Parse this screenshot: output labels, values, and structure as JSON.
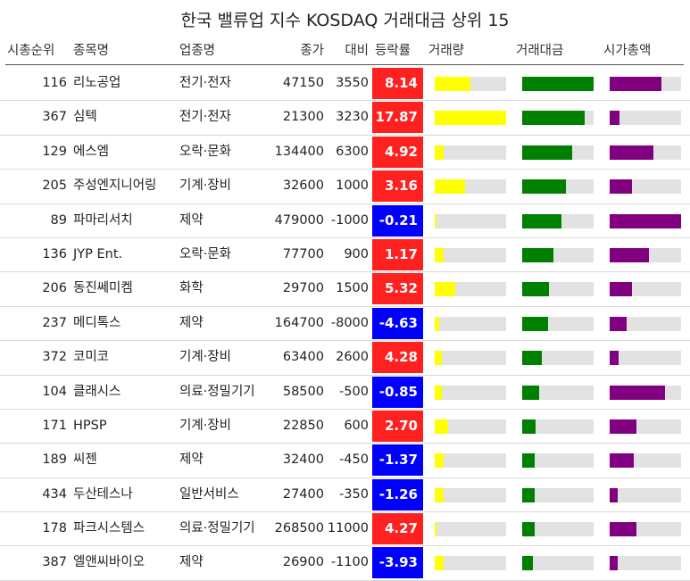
{
  "title": "한국 밸류업 지수 KOSDAQ 거래대금 상위 15",
  "headers": {
    "rank": "시총순위",
    "name": "종목명",
    "sector": "업종명",
    "price": "종가",
    "diff": "대비",
    "rate": "등락률",
    "volume": "거래량",
    "amount": "거래대금",
    "cap": "시가총액"
  },
  "colors": {
    "up": "#ff2020",
    "down": "#0000ff",
    "volume": "#ffff00",
    "amount": "#008000",
    "cap": "#800080",
    "track": "#e2e2e2"
  },
  "chart_data": {
    "type": "table",
    "columns": [
      "시총순위",
      "종목명",
      "업종명",
      "종가",
      "대비",
      "등락률",
      "거래량",
      "거래대금",
      "시가총액"
    ],
    "bar_columns_note_units": "fraction of column maximum",
    "rows": [
      {
        "rank": "116",
        "name": "리노공업",
        "sector": "전기·전자",
        "price": "47150",
        "diff": "3550",
        "rate": "8.14",
        "volume": 0.5,
        "amount": 1.0,
        "cap": 0.72
      },
      {
        "rank": "367",
        "name": "심텍",
        "sector": "전기·전자",
        "price": "21300",
        "diff": "3230",
        "rate": "17.87",
        "volume": 1.0,
        "amount": 0.88,
        "cap": 0.14
      },
      {
        "rank": "129",
        "name": "에스엠",
        "sector": "오락·문화",
        "price": "134400",
        "diff": "6300",
        "rate": "4.92",
        "volume": 0.12,
        "amount": 0.7,
        "cap": 0.61
      },
      {
        "rank": "205",
        "name": "주성엔지니어링",
        "sector": "기계·장비",
        "price": "32600",
        "diff": "1000",
        "rate": "3.16",
        "volume": 0.43,
        "amount": 0.61,
        "cap": 0.31
      },
      {
        "rank": "89",
        "name": "파마리서치",
        "sector": "제약",
        "price": "479000",
        "diff": "-1000",
        "rate": "-0.21",
        "volume": 0.03,
        "amount": 0.55,
        "cap": 1.0
      },
      {
        "rank": "136",
        "name": "JYP Ent.",
        "sector": "오락·문화",
        "price": "77700",
        "diff": "900",
        "rate": "1.17",
        "volume": 0.13,
        "amount": 0.44,
        "cap": 0.55
      },
      {
        "rank": "206",
        "name": "동진쎄미켐",
        "sector": "화학",
        "price": "29700",
        "diff": "1500",
        "rate": "5.32",
        "volume": 0.29,
        "amount": 0.37,
        "cap": 0.31
      },
      {
        "rank": "237",
        "name": "메디톡스",
        "sector": "제약",
        "price": "164700",
        "diff": "-8000",
        "rate": "-4.63",
        "volume": 0.06,
        "amount": 0.36,
        "cap": 0.24
      },
      {
        "rank": "372",
        "name": "코미코",
        "sector": "기계·장비",
        "price": "63400",
        "diff": "2600",
        "rate": "4.28",
        "volume": 0.1,
        "amount": 0.27,
        "cap": 0.13
      },
      {
        "rank": "104",
        "name": "클래시스",
        "sector": "의료·정밀기기",
        "price": "58500",
        "diff": "-500",
        "rate": "-0.85",
        "volume": 0.1,
        "amount": 0.24,
        "cap": 0.77
      },
      {
        "rank": "171",
        "name": "HPSP",
        "sector": "기계·장비",
        "price": "22850",
        "diff": "600",
        "rate": "2.70",
        "volume": 0.19,
        "amount": 0.19,
        "cap": 0.38
      },
      {
        "rank": "189",
        "name": "씨젠",
        "sector": "제약",
        "price": "32400",
        "diff": "-450",
        "rate": "-1.37",
        "volume": 0.13,
        "amount": 0.17,
        "cap": 0.34
      },
      {
        "rank": "434",
        "name": "두산테스나",
        "sector": "일반서비스",
        "price": "27400",
        "diff": "-350",
        "rate": "-1.26",
        "volume": 0.13,
        "amount": 0.17,
        "cap": 0.11
      },
      {
        "rank": "178",
        "name": "파크시스템스",
        "sector": "의료·정밀기기",
        "price": "268500",
        "diff": "11000",
        "rate": "4.27",
        "volume": 0.02,
        "amount": 0.17,
        "cap": 0.38
      },
      {
        "rank": "387",
        "name": "엘앤씨바이오",
        "sector": "제약",
        "price": "26900",
        "diff": "-1100",
        "rate": "-3.93",
        "volume": 0.13,
        "amount": 0.15,
        "cap": 0.11
      }
    ]
  }
}
